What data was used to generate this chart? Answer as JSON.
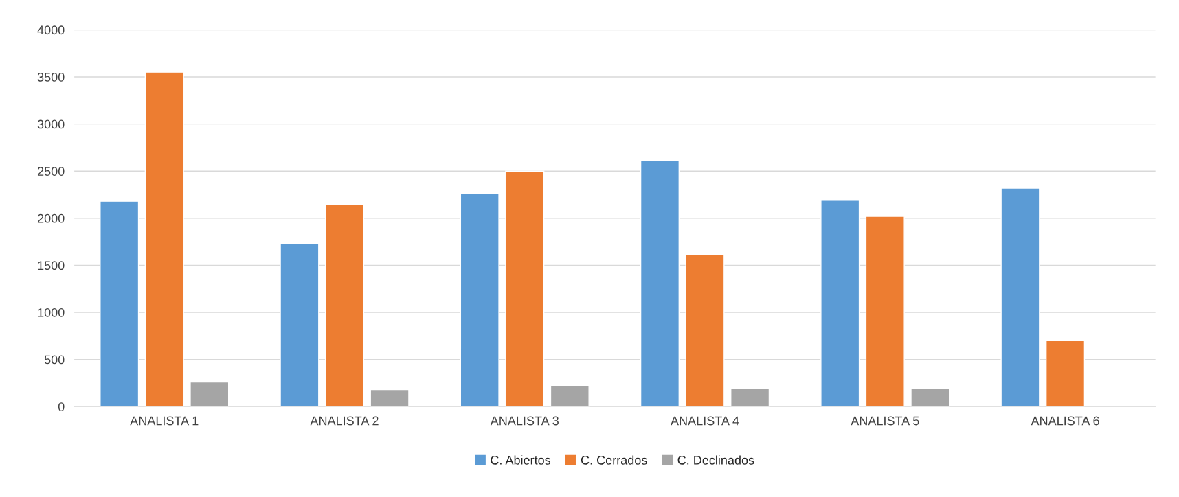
{
  "chart_data": {
    "type": "bar",
    "categories": [
      "ANALISTA 1",
      "ANALISTA 2",
      "ANALISTA 3",
      "ANALISTA 4",
      "ANALISTA 5",
      "ANALISTA 6"
    ],
    "series": [
      {
        "name": "C. Abiertos",
        "color": "#5b9bd5",
        "values": [
          2180,
          1730,
          2260,
          2610,
          2190,
          2320
        ]
      },
      {
        "name": "C. Cerrados",
        "color": "#ed7d31",
        "values": [
          3550,
          2150,
          2500,
          1610,
          2020,
          700
        ]
      },
      {
        "name": "C. Declinados",
        "color": "#a5a5a5",
        "values": [
          260,
          180,
          220,
          190,
          190,
          null
        ]
      }
    ],
    "ylim": [
      0,
      4000
    ],
    "yticks": [
      0,
      500,
      1000,
      1500,
      2000,
      2500,
      3000,
      3500,
      4000
    ],
    "grid": "y",
    "legend": "bottom"
  }
}
